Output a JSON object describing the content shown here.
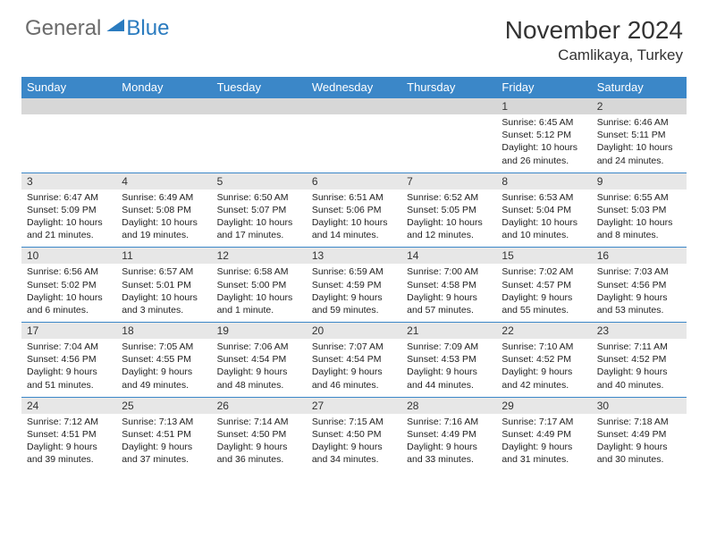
{
  "brand": {
    "general": "General",
    "blue": "Blue"
  },
  "title": "November 2024",
  "location": "Camlikaya, Turkey",
  "colors": {
    "header_bg": "#3b87c8",
    "header_fg": "#ffffff",
    "daynum_bg": "#e7e7e7",
    "week_border": "#3b87c8",
    "logo_blue": "#2a7bbf",
    "logo_gray": "#6b6b6b"
  },
  "day_labels": [
    "Sunday",
    "Monday",
    "Tuesday",
    "Wednesday",
    "Thursday",
    "Friday",
    "Saturday"
  ],
  "weeks": [
    [
      {
        "n": "",
        "sunrise": "",
        "sunset": "",
        "daylight": ""
      },
      {
        "n": "",
        "sunrise": "",
        "sunset": "",
        "daylight": ""
      },
      {
        "n": "",
        "sunrise": "",
        "sunset": "",
        "daylight": ""
      },
      {
        "n": "",
        "sunrise": "",
        "sunset": "",
        "daylight": ""
      },
      {
        "n": "",
        "sunrise": "",
        "sunset": "",
        "daylight": ""
      },
      {
        "n": "1",
        "sunrise": "Sunrise: 6:45 AM",
        "sunset": "Sunset: 5:12 PM",
        "daylight": "Daylight: 10 hours and 26 minutes."
      },
      {
        "n": "2",
        "sunrise": "Sunrise: 6:46 AM",
        "sunset": "Sunset: 5:11 PM",
        "daylight": "Daylight: 10 hours and 24 minutes."
      }
    ],
    [
      {
        "n": "3",
        "sunrise": "Sunrise: 6:47 AM",
        "sunset": "Sunset: 5:09 PM",
        "daylight": "Daylight: 10 hours and 21 minutes."
      },
      {
        "n": "4",
        "sunrise": "Sunrise: 6:49 AM",
        "sunset": "Sunset: 5:08 PM",
        "daylight": "Daylight: 10 hours and 19 minutes."
      },
      {
        "n": "5",
        "sunrise": "Sunrise: 6:50 AM",
        "sunset": "Sunset: 5:07 PM",
        "daylight": "Daylight: 10 hours and 17 minutes."
      },
      {
        "n": "6",
        "sunrise": "Sunrise: 6:51 AM",
        "sunset": "Sunset: 5:06 PM",
        "daylight": "Daylight: 10 hours and 14 minutes."
      },
      {
        "n": "7",
        "sunrise": "Sunrise: 6:52 AM",
        "sunset": "Sunset: 5:05 PM",
        "daylight": "Daylight: 10 hours and 12 minutes."
      },
      {
        "n": "8",
        "sunrise": "Sunrise: 6:53 AM",
        "sunset": "Sunset: 5:04 PM",
        "daylight": "Daylight: 10 hours and 10 minutes."
      },
      {
        "n": "9",
        "sunrise": "Sunrise: 6:55 AM",
        "sunset": "Sunset: 5:03 PM",
        "daylight": "Daylight: 10 hours and 8 minutes."
      }
    ],
    [
      {
        "n": "10",
        "sunrise": "Sunrise: 6:56 AM",
        "sunset": "Sunset: 5:02 PM",
        "daylight": "Daylight: 10 hours and 6 minutes."
      },
      {
        "n": "11",
        "sunrise": "Sunrise: 6:57 AM",
        "sunset": "Sunset: 5:01 PM",
        "daylight": "Daylight: 10 hours and 3 minutes."
      },
      {
        "n": "12",
        "sunrise": "Sunrise: 6:58 AM",
        "sunset": "Sunset: 5:00 PM",
        "daylight": "Daylight: 10 hours and 1 minute."
      },
      {
        "n": "13",
        "sunrise": "Sunrise: 6:59 AM",
        "sunset": "Sunset: 4:59 PM",
        "daylight": "Daylight: 9 hours and 59 minutes."
      },
      {
        "n": "14",
        "sunrise": "Sunrise: 7:00 AM",
        "sunset": "Sunset: 4:58 PM",
        "daylight": "Daylight: 9 hours and 57 minutes."
      },
      {
        "n": "15",
        "sunrise": "Sunrise: 7:02 AM",
        "sunset": "Sunset: 4:57 PM",
        "daylight": "Daylight: 9 hours and 55 minutes."
      },
      {
        "n": "16",
        "sunrise": "Sunrise: 7:03 AM",
        "sunset": "Sunset: 4:56 PM",
        "daylight": "Daylight: 9 hours and 53 minutes."
      }
    ],
    [
      {
        "n": "17",
        "sunrise": "Sunrise: 7:04 AM",
        "sunset": "Sunset: 4:56 PM",
        "daylight": "Daylight: 9 hours and 51 minutes."
      },
      {
        "n": "18",
        "sunrise": "Sunrise: 7:05 AM",
        "sunset": "Sunset: 4:55 PM",
        "daylight": "Daylight: 9 hours and 49 minutes."
      },
      {
        "n": "19",
        "sunrise": "Sunrise: 7:06 AM",
        "sunset": "Sunset: 4:54 PM",
        "daylight": "Daylight: 9 hours and 48 minutes."
      },
      {
        "n": "20",
        "sunrise": "Sunrise: 7:07 AM",
        "sunset": "Sunset: 4:54 PM",
        "daylight": "Daylight: 9 hours and 46 minutes."
      },
      {
        "n": "21",
        "sunrise": "Sunrise: 7:09 AM",
        "sunset": "Sunset: 4:53 PM",
        "daylight": "Daylight: 9 hours and 44 minutes."
      },
      {
        "n": "22",
        "sunrise": "Sunrise: 7:10 AM",
        "sunset": "Sunset: 4:52 PM",
        "daylight": "Daylight: 9 hours and 42 minutes."
      },
      {
        "n": "23",
        "sunrise": "Sunrise: 7:11 AM",
        "sunset": "Sunset: 4:52 PM",
        "daylight": "Daylight: 9 hours and 40 minutes."
      }
    ],
    [
      {
        "n": "24",
        "sunrise": "Sunrise: 7:12 AM",
        "sunset": "Sunset: 4:51 PM",
        "daylight": "Daylight: 9 hours and 39 minutes."
      },
      {
        "n": "25",
        "sunrise": "Sunrise: 7:13 AM",
        "sunset": "Sunset: 4:51 PM",
        "daylight": "Daylight: 9 hours and 37 minutes."
      },
      {
        "n": "26",
        "sunrise": "Sunrise: 7:14 AM",
        "sunset": "Sunset: 4:50 PM",
        "daylight": "Daylight: 9 hours and 36 minutes."
      },
      {
        "n": "27",
        "sunrise": "Sunrise: 7:15 AM",
        "sunset": "Sunset: 4:50 PM",
        "daylight": "Daylight: 9 hours and 34 minutes."
      },
      {
        "n": "28",
        "sunrise": "Sunrise: 7:16 AM",
        "sunset": "Sunset: 4:49 PM",
        "daylight": "Daylight: 9 hours and 33 minutes."
      },
      {
        "n": "29",
        "sunrise": "Sunrise: 7:17 AM",
        "sunset": "Sunset: 4:49 PM",
        "daylight": "Daylight: 9 hours and 31 minutes."
      },
      {
        "n": "30",
        "sunrise": "Sunrise: 7:18 AM",
        "sunset": "Sunset: 4:49 PM",
        "daylight": "Daylight: 9 hours and 30 minutes."
      }
    ]
  ]
}
